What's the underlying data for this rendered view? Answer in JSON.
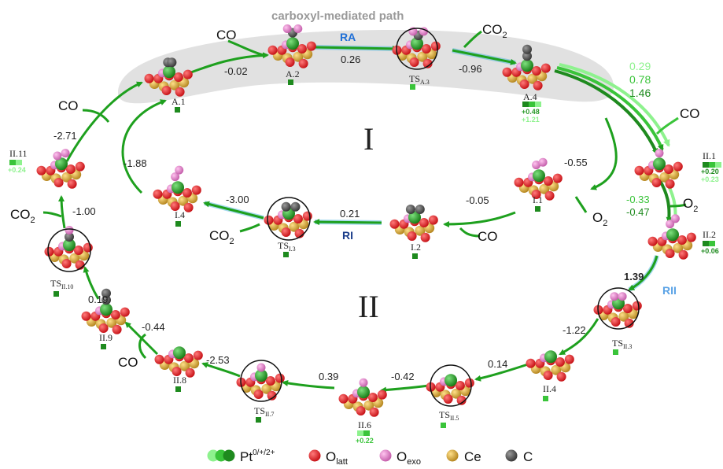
{
  "header": {
    "path_label": "carboxyl-mediated path"
  },
  "cycles": {
    "cycle_I": "I",
    "cycle_II": "II"
  },
  "mechanisms": {
    "ra": "RA",
    "ri": "RI",
    "rii": "RII"
  },
  "molecules": {
    "co": "CO",
    "co2": "CO",
    "o2": "O",
    "sub2": "2"
  },
  "states": {
    "a1": "A.1",
    "a2": "A.2",
    "ts_a3": "TS",
    "ts_a3_sub": "A.3",
    "a4": "A.4",
    "i1": "I.1",
    "i2": "I.2",
    "ts_i3": "TS",
    "ts_i3_sub": "I.3",
    "i4": "I.4",
    "ii1": "II.1",
    "ii2": "II.2",
    "ts_ii3": "TS",
    "ts_ii3_sub": "II.3",
    "ii4": "II.4",
    "ts_ii5": "TS",
    "ts_ii5_sub": "II.5",
    "ii6": "II.6",
    "ts_ii7": "TS",
    "ts_ii7_sub": "II.7",
    "ii8": "II.8",
    "ii9": "II.9",
    "ts_ii10": "TS",
    "ts_ii10_sub": "II.10",
    "ii11": "II.11"
  },
  "charges": {
    "a4_a": "+0.48",
    "a4_b": "+1.21",
    "ii1_a": "+0.20",
    "ii1_b": "+0.23",
    "ii2": "+0.06",
    "ii6": "+0.22",
    "ii11": "+0.24"
  },
  "energies": {
    "a1_a2": "-0.02",
    "a2_ts": "0.26",
    "ts_a4": "-0.96",
    "a4_ii1_a": "0.29",
    "a4_ii1_b": "0.78",
    "a4_ii1_c": "1.46",
    "ii1_ii2_a": "-0.33",
    "ii1_ii2_b": "-0.47",
    "ii2_ts": "1.39",
    "ts_ii4": "-1.22",
    "ii4_ts5": "0.14",
    "ts5_ii6": "-0.42",
    "ii6_ts7": "0.39",
    "ts7_ii8": "-2.53",
    "ii8_ii9": "-0.44",
    "ii9_ts10": "0.19",
    "ts10_ii11": "-1.00",
    "ii11_a1": "-2.71",
    "a4_i1": "-0.55",
    "i1_i2": "-0.05",
    "i2_ts": "0.21",
    "ts_i4": "-3.00",
    "i4_a1": "-1.88"
  },
  "legend": {
    "pt": "Pt",
    "pt_sup": "0/+/2+",
    "o_latt": "O",
    "o_latt_sub": "latt",
    "o_exo": "O",
    "o_exo_sub": "exo",
    "ce": "Ce",
    "c": "C"
  },
  "colors": {
    "pt0": "#1e8a1e",
    "pt1": "#3ac43a",
    "pt2": "#8ef28e",
    "o_latt": "#e0161a",
    "o_exo": "#e07ac6",
    "ce": "#d7a32a",
    "c": "#555555",
    "arrow": "#1ea01e",
    "band": "#d9d9d9",
    "ra_label": "#1f6fd6",
    "ri_label": "#1a3c8a",
    "rii_label": "#5ba3e6"
  }
}
